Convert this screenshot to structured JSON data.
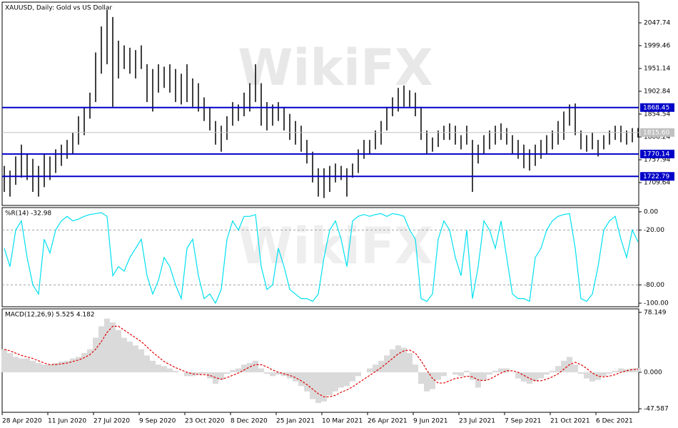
{
  "watermark": "WikiFX",
  "chart_data": [
    {
      "type": "ohlc",
      "title": "XAUUSD, Daily:  Gold vs US Dollar",
      "color": "#000000",
      "categories": [
        "28 Apr 2020",
        null,
        null,
        null,
        null,
        null,
        null,
        null,
        "11 Jun 2020",
        null,
        null,
        null,
        null,
        null,
        null,
        null,
        "27 Jul 2020",
        null,
        null,
        null,
        null,
        null,
        null,
        null,
        "9 Sep 2020",
        null,
        null,
        null,
        null,
        null,
        null,
        null,
        "23 Oct 2020",
        null,
        null,
        null,
        null,
        null,
        null,
        null,
        "8 Dec 2020",
        null,
        null,
        null,
        null,
        null,
        null,
        null,
        "25 Jan 2021",
        null,
        null,
        null,
        null,
        null,
        null,
        null,
        "10 Mar 2021",
        null,
        null,
        null,
        null,
        null,
        null,
        null,
        "26 Apr 2021",
        null,
        null,
        null,
        null,
        null,
        null,
        null,
        "9 Jun 2021",
        null,
        null,
        null,
        null,
        null,
        null,
        null,
        "23 Jul 2021",
        null,
        null,
        null,
        null,
        null,
        null,
        null,
        "7 Sep 2021",
        null,
        null,
        null,
        null,
        null,
        null,
        null,
        "21 Oct 2021",
        null,
        null,
        null,
        null,
        null,
        null,
        null,
        "6 Dec 2021",
        null,
        null,
        null,
        null,
        null,
        null,
        null
      ],
      "high": [
        1745,
        1735,
        1765,
        1790,
        1770,
        1760,
        1745,
        1770,
        1765,
        1780,
        1790,
        1800,
        1815,
        1850,
        1870,
        1900,
        1985,
        2040,
        2075,
        2060,
        2010,
        2000,
        1995,
        1990,
        2000,
        1960,
        1950,
        1960,
        1955,
        1960,
        1950,
        1940,
        1960,
        1930,
        1920,
        1890,
        1870,
        1840,
        1830,
        1850,
        1880,
        1875,
        1900,
        1920,
        1960,
        1920,
        1880,
        1875,
        1880,
        1870,
        1855,
        1840,
        1830,
        1800,
        1775,
        1740,
        1740,
        1745,
        1750,
        1745,
        1740,
        1750,
        1780,
        1800,
        1800,
        1820,
        1840,
        1870,
        1890,
        1910,
        1915,
        1905,
        1900,
        1870,
        1820,
        1805,
        1820,
        1830,
        1835,
        1830,
        1810,
        1830,
        1800,
        1790,
        1810,
        1820,
        1830,
        1835,
        1825,
        1810,
        1800,
        1790,
        1780,
        1790,
        1800,
        1810,
        1820,
        1840,
        1860,
        1875,
        1877,
        1820,
        1810,
        1815,
        1800,
        1810,
        1820,
        1830,
        1830,
        1820,
        1825,
        1825
      ],
      "low": [
        1690,
        1680,
        1705,
        1720,
        1715,
        1690,
        1680,
        1700,
        1715,
        1730,
        1745,
        1760,
        1770,
        1790,
        1810,
        1845,
        1880,
        1940,
        1960,
        1870,
        1930,
        1950,
        1940,
        1930,
        1950,
        1880,
        1860,
        1900,
        1910,
        1900,
        1880,
        1875,
        1880,
        1870,
        1860,
        1840,
        1820,
        1790,
        1775,
        1800,
        1830,
        1840,
        1850,
        1860,
        1880,
        1830,
        1820,
        1830,
        1840,
        1820,
        1800,
        1790,
        1775,
        1750,
        1710,
        1680,
        1677,
        1690,
        1710,
        1715,
        1680,
        1720,
        1730,
        1760,
        1770,
        1780,
        1790,
        1820,
        1850,
        1860,
        1870,
        1870,
        1850,
        1800,
        1770,
        1775,
        1785,
        1800,
        1800,
        1790,
        1780,
        1790,
        1690,
        1750,
        1770,
        1780,
        1790,
        1800,
        1790,
        1770,
        1760,
        1740,
        1735,
        1745,
        1760,
        1770,
        1780,
        1790,
        1800,
        1830,
        1810,
        1780,
        1775,
        1780,
        1765,
        1780,
        1790,
        1800,
        1795,
        1790,
        1795,
        1805
      ],
      "ylim": [
        1661.3,
        2091.5
      ],
      "yticks": [
        2047.74,
        1999.46,
        1951.14,
        1902.84,
        1854.54,
        1806.24,
        1757.94,
        1709.64
      ],
      "levels": [
        1868.45,
        1770.14,
        1722.79
      ],
      "level_color": "#0000c8",
      "last_price": {
        "value": 1815.6,
        "label": "1815.60"
      }
    },
    {
      "type": "line",
      "title": "%R(14) -32.98",
      "color": "#00e0f0",
      "values": [
        -40,
        -60,
        -20,
        -10,
        -50,
        -80,
        -90,
        -30,
        -45,
        -20,
        -10,
        -5,
        -10,
        -8,
        -5,
        -3,
        -2,
        -1,
        -5,
        -70,
        -60,
        -65,
        -50,
        -40,
        -30,
        -70,
        -90,
        -75,
        -50,
        -60,
        -80,
        -95,
        -40,
        -30,
        -70,
        -95,
        -90,
        -100,
        -85,
        -30,
        -10,
        -20,
        -5,
        -5,
        -3,
        -60,
        -85,
        -80,
        -40,
        -60,
        -85,
        -90,
        -95,
        -95,
        -98,
        -90,
        -50,
        -20,
        -10,
        -30,
        -60,
        -10,
        -5,
        -3,
        -5,
        -3,
        -2,
        -5,
        -2,
        -3,
        -5,
        -20,
        -30,
        -95,
        -98,
        -90,
        -30,
        -10,
        -20,
        -50,
        -70,
        -20,
        -95,
        -60,
        -10,
        -20,
        -40,
        -10,
        -50,
        -90,
        -95,
        -95,
        -98,
        -50,
        -40,
        -20,
        -10,
        -5,
        -3,
        -2,
        -40,
        -95,
        -98,
        -90,
        -60,
        -20,
        -10,
        -5,
        -30,
        -50,
        -20,
        -33
      ],
      "ylim": [
        -103.9,
        4.6
      ],
      "yticks": [
        {
          "value": 0,
          "label": "0.00"
        },
        {
          "value": -20,
          "label": "-20.00"
        },
        {
          "value": -80,
          "label": "-80.00"
        },
        {
          "value": -100,
          "label": "-100.00"
        }
      ],
      "levels": [
        -20,
        -80
      ]
    },
    {
      "type": "macd",
      "title": "MACD(12,26,9) 5.525 4.182",
      "hist_color": "#b4b4b4",
      "signal_color": "#e00000",
      "histogram": [
        30,
        25,
        20,
        18,
        18,
        15,
        12,
        10,
        10,
        12,
        14,
        15,
        18,
        20,
        25,
        30,
        45,
        60,
        70,
        65,
        55,
        45,
        40,
        35,
        30,
        22,
        15,
        10,
        8,
        5,
        2,
        0,
        -5,
        -5,
        -3,
        -2,
        -8,
        -15,
        -10,
        -2,
        3,
        5,
        10,
        12,
        15,
        5,
        -2,
        -5,
        -3,
        -5,
        -8,
        -12,
        -18,
        -25,
        -35,
        -40,
        -38,
        -30,
        -25,
        -20,
        -18,
        -12,
        -5,
        0,
        5,
        10,
        15,
        22,
        30,
        35,
        32,
        25,
        10,
        -15,
        -25,
        -22,
        -10,
        -5,
        0,
        -3,
        -5,
        2,
        -10,
        -20,
        -10,
        -3,
        2,
        5,
        5,
        0,
        -8,
        -12,
        -15,
        -12,
        -8,
        -3,
        2,
        8,
        15,
        20,
        10,
        -2,
        -8,
        -12,
        -10,
        -5,
        -2,
        2,
        5,
        4,
        5,
        5.5
      ],
      "signal": [
        30,
        28,
        25,
        22,
        20,
        18,
        15,
        12,
        10,
        10,
        11,
        12,
        14,
        16,
        19,
        23,
        30,
        40,
        52,
        60,
        60,
        55,
        50,
        45,
        40,
        33,
        26,
        20,
        14,
        10,
        6,
        3,
        0,
        -2,
        -3,
        -3,
        -4,
        -7,
        -9,
        -7,
        -4,
        -1,
        3,
        7,
        10,
        10,
        7,
        3,
        0,
        -2,
        -4,
        -7,
        -11,
        -16,
        -22,
        -28,
        -32,
        -32,
        -30,
        -26,
        -23,
        -19,
        -14,
        -9,
        -4,
        1,
        6,
        12,
        18,
        24,
        28,
        29,
        25,
        15,
        3,
        -8,
        -14,
        -14,
        -11,
        -8,
        -7,
        -5,
        -6,
        -10,
        -11,
        -9,
        -5,
        -1,
        2,
        2,
        0,
        -4,
        -8,
        -11,
        -11,
        -9,
        -6,
        -2,
        4,
        10,
        13,
        10,
        5,
        -1,
        -5,
        -6,
        -5,
        -3,
        0,
        2,
        3.5,
        4.2
      ],
      "ylim": [
        -52.2,
        82.7
      ],
      "yticks": [
        78.149,
        {
          "value": 0,
          "label": "0.000"
        },
        -47.587
      ]
    }
  ]
}
